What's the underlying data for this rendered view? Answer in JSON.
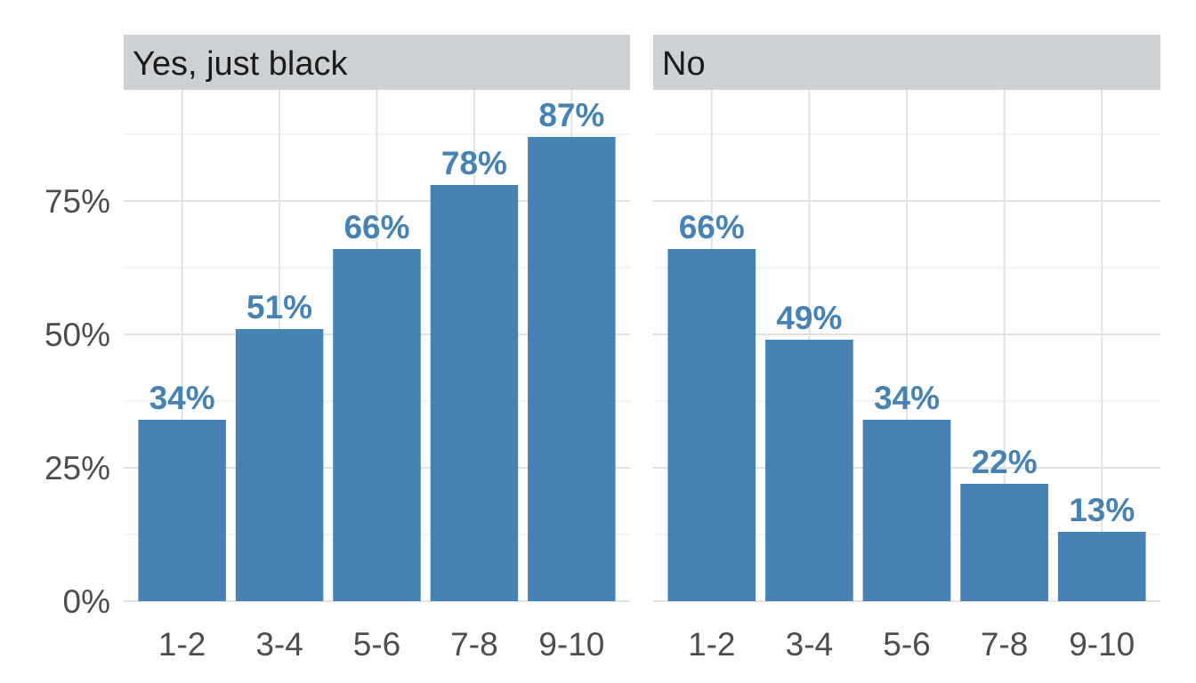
{
  "chart_data": {
    "type": "bar",
    "facets": [
      {
        "name": "Yes, just black",
        "categories": [
          "1-2",
          "3-4",
          "5-6",
          "7-8",
          "9-10"
        ],
        "values": [
          34,
          51,
          66,
          78,
          87
        ],
        "labels": [
          "34%",
          "51%",
          "66%",
          "78%",
          "87%"
        ]
      },
      {
        "name": "No",
        "categories": [
          "1-2",
          "3-4",
          "5-6",
          "7-8",
          "9-10"
        ],
        "values": [
          66,
          49,
          34,
          22,
          13
        ],
        "labels": [
          "66%",
          "49%",
          "34%",
          "22%",
          "13%"
        ]
      }
    ],
    "y_ticks": [
      0,
      25,
      50,
      75
    ],
    "y_tick_labels": [
      "0%",
      "25%",
      "50%",
      "75%"
    ],
    "ylim": [
      0,
      92
    ],
    "title": "",
    "xlabel": "",
    "ylabel": "",
    "grid": true,
    "legend": "none",
    "bar_color": "#4682b4",
    "label_color": "#4682b4",
    "strip_color": "#cdd1d4"
  }
}
